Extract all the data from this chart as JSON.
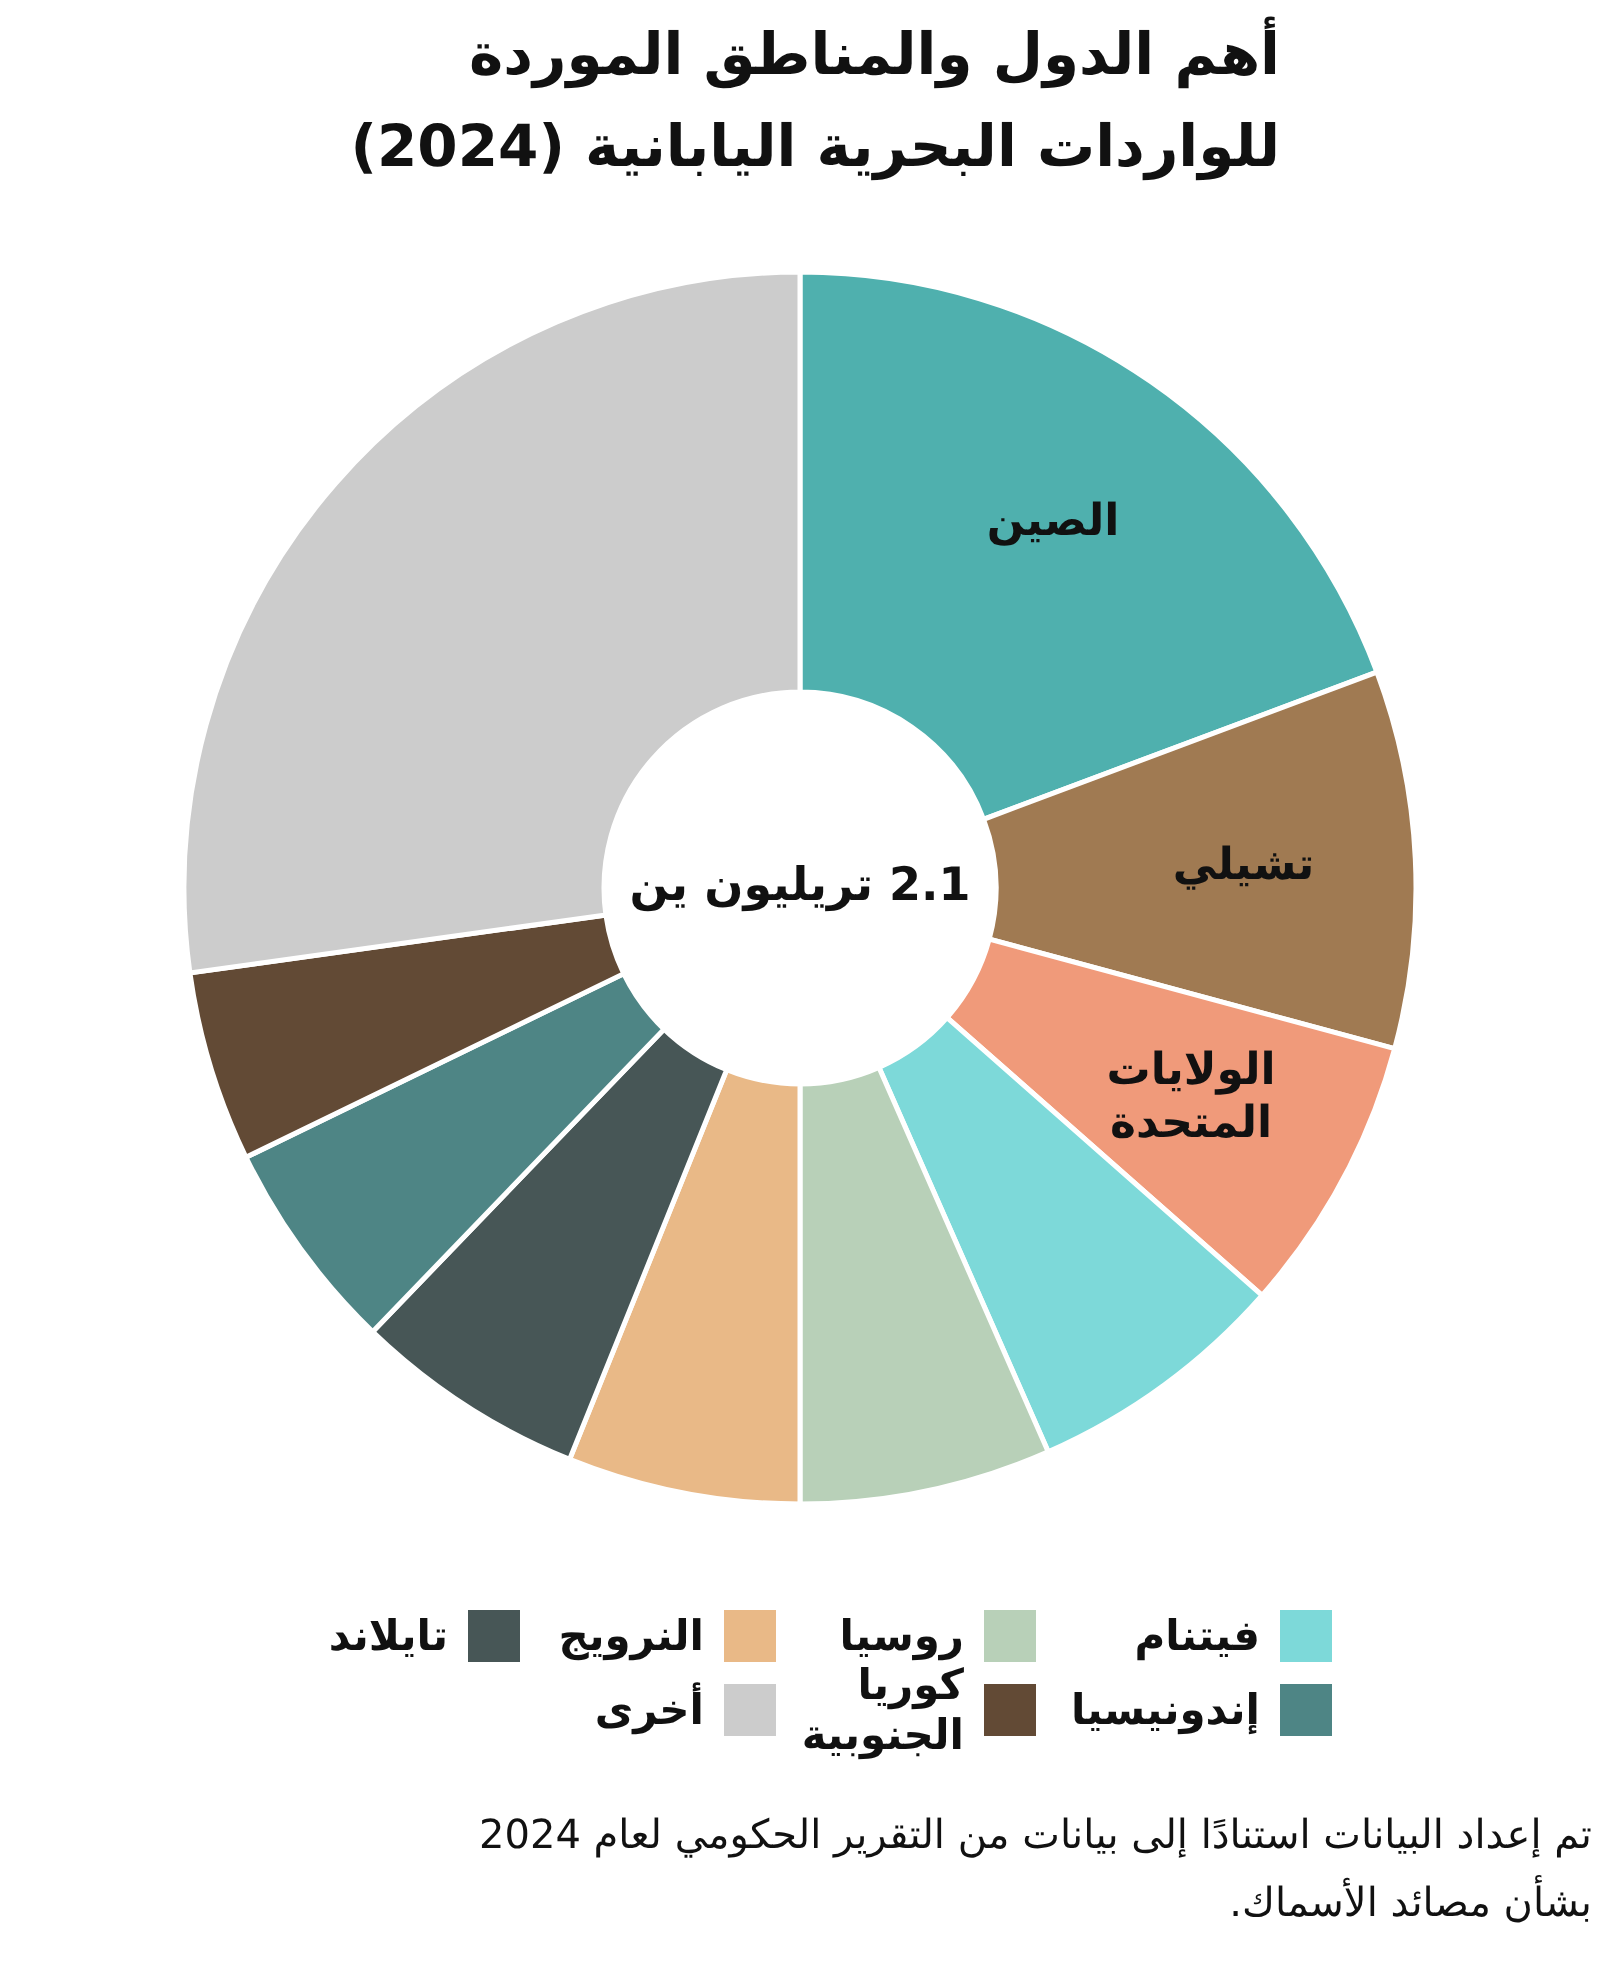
{
  "chart_data": {
    "type": "donut",
    "title": "أهم الدول والمناطق الموردة للواردات البحرية اليابانية (2024)",
    "categories": [
      "الصين",
      "تشيلي",
      "الولايات المتحدة",
      "فيتنام",
      "روسيا",
      "النرويج",
      "تايلاند",
      "إندونيسيا",
      "كوريا الجنوبية",
      "أخرى"
    ],
    "values": [
      19.3,
      9.9,
      7.3,
      6.9,
      6.6,
      6.1,
      6.1,
      5.6,
      5.0,
      27.2
    ],
    "colors": [
      "#4fb0ae",
      "#a07a52",
      "#f09a7a",
      "#7dd9d9",
      "#b8d0b8",
      "#e9b987",
      "#475656",
      "#4e8585",
      "#624a35",
      "#cccccc"
    ],
    "legend": "bottom",
    "annotations": [
      "2.1 تريليون ين",
      "تم إعداد البيانات استنادًا إلى بيانات من التقرير الحكومي لعام 2024 بشأن مصائد الأسماك."
    ]
  }
}
